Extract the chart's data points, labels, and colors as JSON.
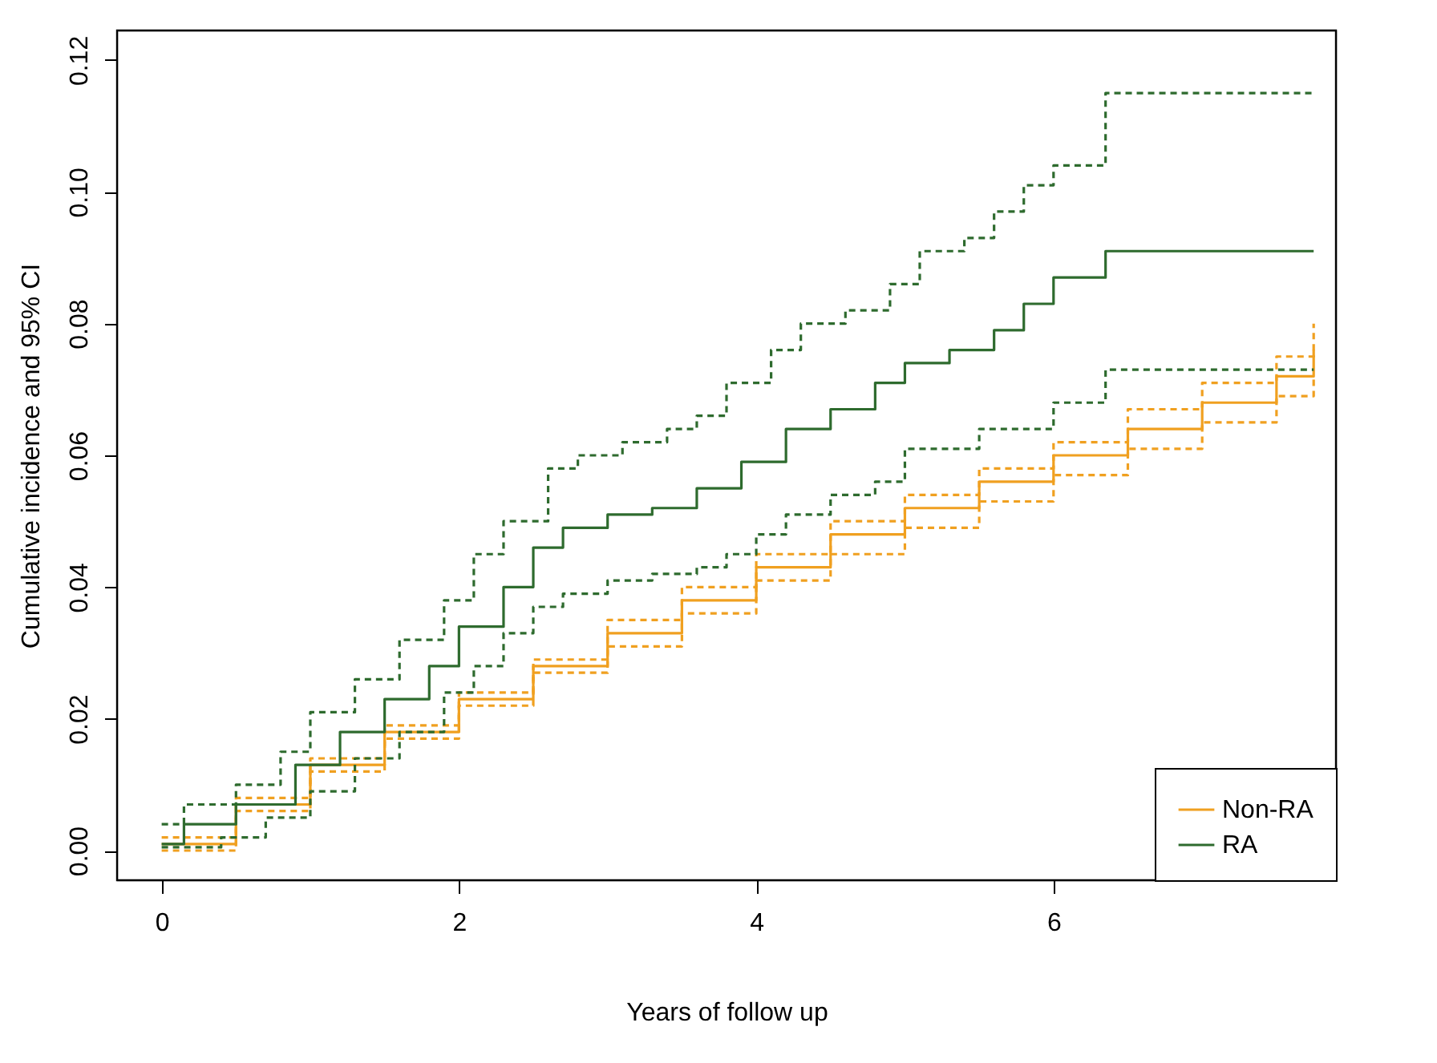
{
  "chart_data": {
    "type": "step",
    "xlabel": "Years of follow up",
    "ylabel": "Cumulative incidence and 95% CI",
    "xlim": [
      -0.3,
      7.9
    ],
    "ylim": [
      -0.0045,
      0.1245
    ],
    "xticks": [
      0,
      2,
      4,
      6
    ],
    "yticks": [
      {
        "value": 0,
        "label": "0.00"
      },
      {
        "value": 0.02,
        "label": "0.02"
      },
      {
        "value": 0.04,
        "label": "0.04"
      },
      {
        "value": 0.06,
        "label": "0.06"
      },
      {
        "value": 0.08,
        "label": "0.08"
      },
      {
        "value": 0.1,
        "label": "0.10"
      },
      {
        "value": 0.12,
        "label": "0.12"
      }
    ],
    "grid": false,
    "legend": "bottom right",
    "series": [
      {
        "name": "Non-RA",
        "color": "#f0a020",
        "line_style": "solid",
        "x": [
          0,
          0.5,
          1,
          1.5,
          2,
          2.5,
          3,
          3.5,
          4,
          4.5,
          5,
          5.5,
          6,
          6.5,
          7,
          7.5,
          7.75
        ],
        "values": [
          0.001,
          0.007,
          0.013,
          0.018,
          0.023,
          0.028,
          0.033,
          0.038,
          0.043,
          0.048,
          0.052,
          0.056,
          0.06,
          0.064,
          0.068,
          0.072,
          0.076
        ]
      },
      {
        "color": "#f0a020",
        "line_style": "dashed",
        "x": [
          0,
          0.5,
          1,
          1.5,
          2,
          2.5,
          3,
          3.5,
          4,
          4.5,
          5,
          5.5,
          6,
          6.5,
          7,
          7.5,
          7.75
        ],
        "values": [
          0.0,
          0.006,
          0.012,
          0.017,
          0.022,
          0.027,
          0.031,
          0.036,
          0.041,
          0.045,
          0.049,
          0.053,
          0.057,
          0.061,
          0.065,
          0.069,
          0.072
        ]
      },
      {
        "color": "#f0a020",
        "line_style": "dashed",
        "x": [
          0,
          0.5,
          1,
          1.5,
          2,
          2.5,
          3,
          3.5,
          4,
          4.5,
          5,
          5.5,
          6,
          6.5,
          7,
          7.5,
          7.75
        ],
        "values": [
          0.002,
          0.008,
          0.014,
          0.019,
          0.024,
          0.029,
          0.035,
          0.04,
          0.045,
          0.05,
          0.054,
          0.058,
          0.062,
          0.067,
          0.071,
          0.075,
          0.08
        ]
      },
      {
        "name": "RA",
        "color": "#2e6b2e",
        "line_style": "solid",
        "x": [
          0,
          0.15,
          0.5,
          0.9,
          1.2,
          1.5,
          1.8,
          2.0,
          2.3,
          2.5,
          2.7,
          3.0,
          3.3,
          3.6,
          3.9,
          4.2,
          4.5,
          4.8,
          5.0,
          5.3,
          5.6,
          5.8,
          6.0,
          6.35,
          7.75
        ],
        "values": [
          0.001,
          0.004,
          0.007,
          0.013,
          0.018,
          0.023,
          0.028,
          0.034,
          0.04,
          0.046,
          0.049,
          0.051,
          0.052,
          0.055,
          0.059,
          0.064,
          0.067,
          0.071,
          0.074,
          0.076,
          0.079,
          0.083,
          0.087,
          0.091,
          0.091
        ]
      },
      {
        "color": "#2e6b2e",
        "line_style": "dashed",
        "x": [
          0,
          0.15,
          0.5,
          0.8,
          1.0,
          1.3,
          1.6,
          1.9,
          2.1,
          2.3,
          2.6,
          2.8,
          3.1,
          3.4,
          3.6,
          3.8,
          4.1,
          4.3,
          4.6,
          4.9,
          5.1,
          5.4,
          5.6,
          5.8,
          6.0,
          6.35,
          7.75
        ],
        "values": [
          0.004,
          0.007,
          0.01,
          0.015,
          0.021,
          0.026,
          0.032,
          0.038,
          0.045,
          0.05,
          0.058,
          0.06,
          0.062,
          0.064,
          0.066,
          0.071,
          0.076,
          0.08,
          0.082,
          0.086,
          0.091,
          0.093,
          0.097,
          0.101,
          0.104,
          0.115,
          0.115
        ]
      },
      {
        "color": "#2e6b2e",
        "line_style": "dashed",
        "x": [
          0,
          0.4,
          0.7,
          1.0,
          1.3,
          1.6,
          1.9,
          2.1,
          2.3,
          2.5,
          2.7,
          3.0,
          3.3,
          3.6,
          3.8,
          4.0,
          4.2,
          4.5,
          4.8,
          5.0,
          5.5,
          6.0,
          6.35,
          7.75
        ],
        "values": [
          0.0005,
          0.002,
          0.005,
          0.009,
          0.014,
          0.018,
          0.024,
          0.028,
          0.033,
          0.037,
          0.039,
          0.041,
          0.042,
          0.043,
          0.045,
          0.048,
          0.051,
          0.054,
          0.056,
          0.061,
          0.064,
          0.068,
          0.073,
          0.073
        ]
      }
    ]
  }
}
